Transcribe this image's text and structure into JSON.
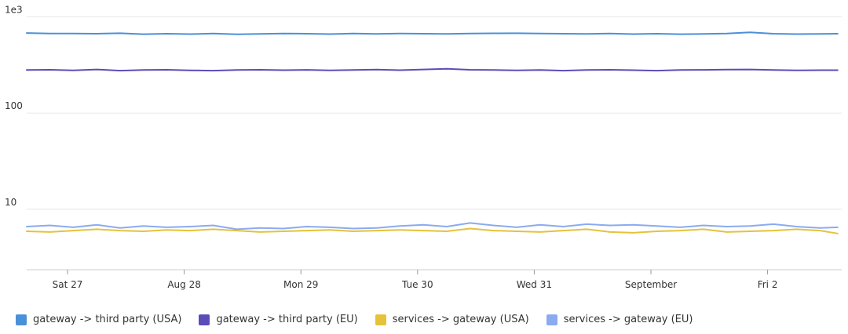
{
  "chart_data": {
    "type": "line",
    "yscale": "log",
    "ylim": [
      2.5,
      1200
    ],
    "y_ticks": [
      {
        "value": 10,
        "label": "10"
      },
      {
        "value": 100,
        "label": "100"
      },
      {
        "value": 1000,
        "label": "1e3"
      }
    ],
    "x_ticks": [
      {
        "pos": 0.0,
        "label": "Sat 27"
      },
      {
        "pos": 1.0,
        "label": "Aug 28"
      },
      {
        "pos": 2.0,
        "label": "Mon 29"
      },
      {
        "pos": 3.0,
        "label": "Tue 30"
      },
      {
        "pos": 4.0,
        "label": "Wed 31"
      },
      {
        "pos": 5.0,
        "label": "September"
      },
      {
        "pos": 6.0,
        "label": "Fri 2"
      }
    ],
    "x": [
      -0.35,
      -0.15,
      0.05,
      0.25,
      0.45,
      0.65,
      0.85,
      1.05,
      1.25,
      1.45,
      1.65,
      1.85,
      2.05,
      2.25,
      2.45,
      2.65,
      2.85,
      3.05,
      3.25,
      3.45,
      3.65,
      3.85,
      4.05,
      4.25,
      4.45,
      4.65,
      4.85,
      5.05,
      5.25,
      5.45,
      5.65,
      5.85,
      6.05,
      6.25,
      6.45,
      6.6
    ],
    "series": [
      {
        "name": "gateway -> third party (USA)",
        "color": "#4a90d9",
        "values": [
          680,
          670,
          672,
          668,
          675,
          660,
          668,
          662,
          670,
          658,
          665,
          672,
          668,
          662,
          670,
          666,
          672,
          668,
          665,
          670,
          674,
          676,
          672,
          668,
          666,
          670,
          662,
          668,
          660,
          664,
          672,
          690,
          668,
          662,
          664,
          668
        ]
      },
      {
        "name": "gateway -> third party (EU)",
        "color": "#5b4db8",
        "values": [
          280,
          282,
          278,
          284,
          276,
          280,
          282,
          278,
          276,
          280,
          282,
          279,
          281,
          278,
          280,
          283,
          279,
          284,
          288,
          282,
          280,
          278,
          280,
          276,
          280,
          282,
          279,
          276,
          280,
          281,
          283,
          284,
          280,
          278,
          279,
          279
        ]
      },
      {
        "name": "services -> gateway (USA)",
        "color": "#e6c23a",
        "values": [
          5.9,
          5.8,
          6.0,
          6.2,
          6.0,
          5.9,
          6.1,
          6.0,
          6.2,
          6.0,
          5.8,
          5.9,
          6.0,
          6.1,
          5.9,
          6.0,
          6.1,
          6.0,
          5.9,
          6.3,
          6.0,
          5.9,
          5.8,
          6.0,
          6.2,
          5.8,
          5.7,
          5.9,
          6.0,
          6.2,
          5.8,
          5.9,
          6.0,
          6.2,
          6.0,
          5.6
        ]
      },
      {
        "name": "services -> gateway (EU)",
        "color": "#8aabf0",
        "values": [
          6.6,
          6.8,
          6.5,
          6.9,
          6.4,
          6.7,
          6.5,
          6.6,
          6.8,
          6.2,
          6.4,
          6.3,
          6.6,
          6.5,
          6.3,
          6.4,
          6.7,
          6.9,
          6.6,
          7.2,
          6.8,
          6.5,
          6.9,
          6.6,
          7.0,
          6.8,
          6.9,
          6.7,
          6.5,
          6.8,
          6.6,
          6.7,
          7.0,
          6.6,
          6.4,
          6.5
        ]
      }
    ],
    "legend_position": "bottom-left",
    "grid": true
  }
}
